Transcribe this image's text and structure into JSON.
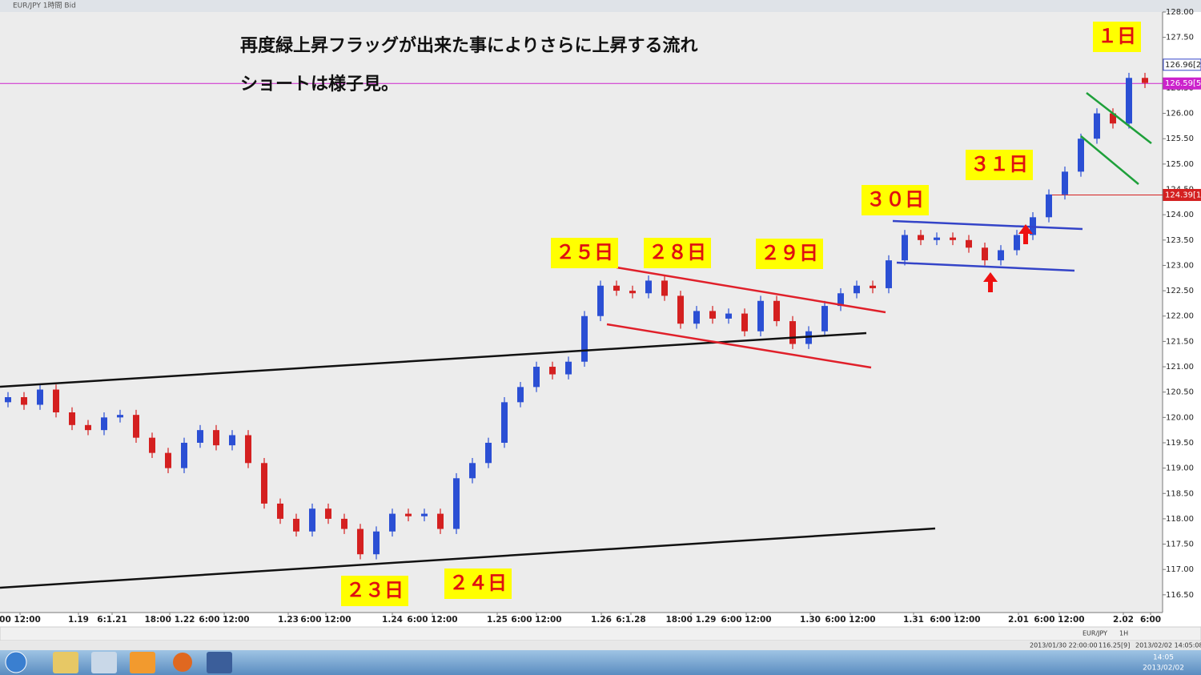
{
  "window_title": "EUR/JPY 1時間 Bid",
  "chart_data": {
    "type": "candlestick",
    "comments": [
      "再度緑上昇フラッグが出来た事によりさらに上昇する流れ",
      "ショートは様子見。"
    ],
    "day_labels": [
      "１日",
      "３１日",
      "３０日",
      "２５日",
      "２８日",
      "２９日",
      "２３日",
      "２４日"
    ],
    "price_labels": [
      {
        "value": 126.96,
        "label": "126.96[2"
      },
      {
        "value": 126.59,
        "label": "126.59[5"
      },
      {
        "value": 124.39,
        "label": "124.39[1"
      }
    ],
    "open": [
      120.3,
      120.4,
      120.25,
      120.55,
      120.1,
      119.85,
      119.75,
      120.0,
      120.05,
      119.6,
      119.3,
      119.0,
      119.5,
      119.75,
      119.45,
      119.65,
      119.1,
      118.3,
      118.0,
      117.75,
      118.2,
      118.0,
      117.8,
      117.3,
      117.75,
      118.1,
      118.05,
      118.1,
      117.8,
      118.8,
      119.1,
      119.5,
      120.3,
      120.6,
      121.0,
      120.85,
      121.1,
      122.0,
      122.6,
      122.5,
      122.45,
      122.7,
      122.4,
      121.85,
      122.1,
      121.95,
      122.05,
      121.7,
      122.3,
      121.9,
      121.45,
      121.7,
      122.2,
      122.45,
      122.6,
      122.55,
      123.1,
      123.6,
      123.5,
      123.55,
      123.5,
      123.35,
      123.1,
      123.3,
      123.6,
      123.95,
      124.4,
      124.85,
      125.5,
      126.0,
      125.8,
      126.7
    ],
    "high": [
      120.5,
      120.5,
      120.65,
      120.65,
      120.2,
      119.95,
      120.1,
      120.15,
      120.15,
      119.7,
      119.4,
      119.6,
      119.85,
      119.85,
      119.75,
      119.75,
      119.2,
      118.4,
      118.1,
      118.3,
      118.3,
      118.1,
      117.9,
      117.85,
      118.2,
      118.2,
      118.2,
      118.2,
      118.9,
      119.2,
      119.6,
      120.4,
      120.7,
      121.1,
      121.1,
      121.2,
      122.1,
      122.7,
      122.7,
      122.6,
      122.8,
      122.8,
      122.5,
      122.2,
      122.2,
      122.15,
      122.15,
      122.4,
      122.4,
      122.0,
      121.8,
      122.3,
      122.55,
      122.7,
      122.7,
      123.2,
      123.7,
      123.7,
      123.65,
      123.65,
      123.6,
      123.45,
      123.4,
      123.7,
      124.05,
      124.5,
      124.95,
      125.6,
      126.1,
      126.1,
      126.8,
      126.8
    ],
    "low": [
      120.2,
      120.15,
      120.15,
      120.0,
      119.75,
      119.65,
      119.65,
      119.9,
      119.5,
      119.2,
      118.9,
      118.9,
      119.4,
      119.35,
      119.35,
      119.0,
      118.2,
      117.9,
      117.65,
      117.65,
      117.9,
      117.7,
      117.2,
      117.2,
      117.65,
      117.95,
      117.95,
      117.7,
      117.7,
      118.7,
      119.0,
      119.4,
      120.2,
      120.5,
      120.75,
      120.75,
      121.0,
      121.9,
      122.4,
      122.35,
      122.35,
      122.3,
      121.75,
      121.75,
      121.85,
      121.85,
      121.6,
      121.6,
      121.8,
      121.35,
      121.35,
      121.6,
      122.1,
      122.35,
      122.45,
      122.45,
      123.0,
      123.4,
      123.4,
      123.4,
      123.25,
      123.0,
      123.0,
      123.2,
      123.5,
      123.85,
      124.3,
      124.75,
      125.4,
      125.7,
      125.7,
      126.5
    ],
    "close": [
      120.4,
      120.25,
      120.55,
      120.1,
      119.85,
      119.75,
      120.0,
      120.05,
      119.6,
      119.3,
      119.0,
      119.5,
      119.75,
      119.45,
      119.65,
      119.1,
      118.3,
      118.0,
      117.75,
      118.2,
      118.0,
      117.8,
      117.3,
      117.75,
      118.1,
      118.05,
      118.1,
      117.8,
      118.8,
      119.1,
      119.5,
      120.3,
      120.6,
      121.0,
      120.85,
      121.1,
      122.0,
      122.6,
      122.5,
      122.45,
      122.7,
      122.4,
      121.85,
      122.1,
      121.95,
      122.05,
      121.7,
      122.3,
      121.9,
      121.45,
      121.7,
      122.2,
      122.45,
      122.6,
      122.55,
      123.1,
      123.6,
      123.5,
      123.55,
      123.5,
      123.35,
      123.1,
      123.3,
      123.6,
      123.95,
      124.4,
      124.85,
      125.5,
      126.0,
      125.8,
      126.7,
      126.6
    ],
    "up_color": "#2b4fd4",
    "down_color": "#d42020",
    "xlim": [
      -0.5,
      72.1
    ],
    "xticks": [
      {
        "value": 0.75,
        "label": "00 12:00"
      },
      {
        "value": 4.4,
        "label": "1.19"
      },
      {
        "value": 6.5,
        "label": "6:1.21"
      },
      {
        "value": 10.1,
        "label": "18:00 1.22"
      },
      {
        "value": 13.5,
        "label": "6:00 12:00"
      },
      {
        "value": 17.5,
        "label": "1.23"
      },
      {
        "value": 19.85,
        "label": "6:00 12:00"
      },
      {
        "value": 24,
        "label": "1.24"
      },
      {
        "value": 26.5,
        "label": "6:00 12:00"
      },
      {
        "value": 30.55,
        "label": "1.25"
      },
      {
        "value": 33,
        "label": "6:00 12:00"
      },
      {
        "value": 37.05,
        "label": "1.26"
      },
      {
        "value": 38.9,
        "label": "6:1.28"
      },
      {
        "value": 42.65,
        "label": "18:00 1.29"
      },
      {
        "value": 46.1,
        "label": "6:00 12:00"
      },
      {
        "value": 50.1,
        "label": "1.30"
      },
      {
        "value": 52.6,
        "label": "6:00 12:00"
      },
      {
        "value": 56.55,
        "label": "1.31"
      },
      {
        "value": 59.15,
        "label": "6:00 12:00"
      },
      {
        "value": 63.1,
        "label": "2.01"
      },
      {
        "value": 65.65,
        "label": "6:00 12:00"
      },
      {
        "value": 69.65,
        "label": "2.02"
      },
      {
        "value": 71.35,
        "label": "6:00"
      }
    ],
    "ylim": [
      116.15,
      128.0
    ],
    "yticks": [
      {
        "value": 116.5,
        "label": "116.50"
      },
      {
        "value": 117,
        "label": "117.00"
      },
      {
        "value": 117.5,
        "label": "117.50"
      },
      {
        "value": 118,
        "label": "118.00"
      },
      {
        "value": 118.5,
        "label": "118.50"
      },
      {
        "value": 119,
        "label": "119.00"
      },
      {
        "value": 119.5,
        "label": "119.50"
      },
      {
        "value": 120,
        "label": "120.00"
      },
      {
        "value": 120.5,
        "label": "120.50"
      },
      {
        "value": 121,
        "label": "121.00"
      },
      {
        "value": 121.5,
        "label": "121.50"
      },
      {
        "value": 122,
        "label": "122.00"
      },
      {
        "value": 122.5,
        "label": "122.50"
      },
      {
        "value": 123,
        "label": "123.00"
      },
      {
        "value": 123.5,
        "label": "123.50"
      },
      {
        "value": 124,
        "label": "124.00"
      },
      {
        "value": 124.5,
        "label": "124.50"
      },
      {
        "value": 125,
        "label": "125.00"
      },
      {
        "value": 125.5,
        "label": "125.50"
      },
      {
        "value": 126,
        "label": "126.00"
      },
      {
        "value": 126.5,
        "label": "126.50"
      },
      {
        "value": 127,
        "label": "127.00"
      },
      {
        "value": 127.5,
        "label": "127.50"
      },
      {
        "value": 128,
        "label": "128.00"
      }
    ]
  },
  "status_bar": {
    "left_time": "2013/01/30 22:00:00",
    "left_price": "116.25[9]",
    "right_time": "2013/02/02 14:05:08",
    "symbol": "EUR/JPY",
    "timeframe": "1H"
  },
  "taskbar": {
    "time": "14:05",
    "date": "2013/02/02"
  }
}
